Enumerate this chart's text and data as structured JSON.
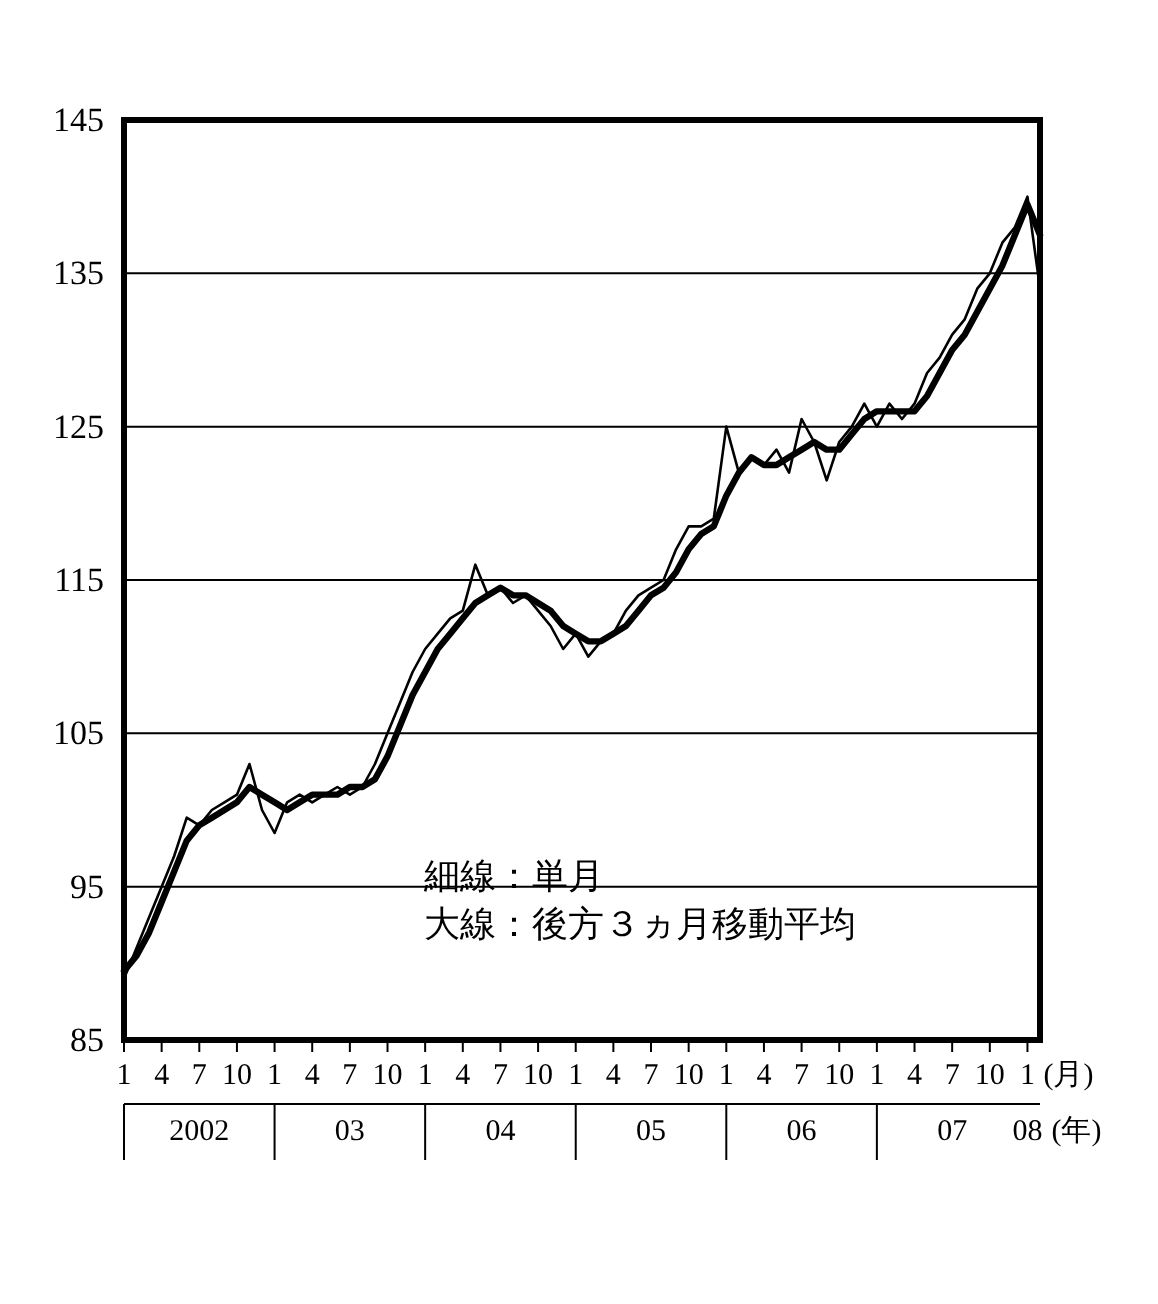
{
  "chart_data": {
    "type": "line",
    "annotations": [
      "細線：単月",
      "大線：後方３ヵ月移動平均"
    ],
    "xlabel": "(月)",
    "x2label": "(年)",
    "x": [
      "2002-01",
      "2002-02",
      "2002-03",
      "2002-04",
      "2002-05",
      "2002-06",
      "2002-07",
      "2002-08",
      "2002-09",
      "2002-10",
      "2002-11",
      "2002-12",
      "2003-01",
      "2003-02",
      "2003-03",
      "2003-04",
      "2003-05",
      "2003-06",
      "2003-07",
      "2003-08",
      "2003-09",
      "2003-10",
      "2003-11",
      "2003-12",
      "2004-01",
      "2004-02",
      "2004-03",
      "2004-04",
      "2004-05",
      "2004-06",
      "2004-07",
      "2004-08",
      "2004-09",
      "2004-10",
      "2004-11",
      "2004-12",
      "2005-01",
      "2005-02",
      "2005-03",
      "2005-04",
      "2005-05",
      "2005-06",
      "2005-07",
      "2005-08",
      "2005-09",
      "2005-10",
      "2005-11",
      "2005-12",
      "2006-01",
      "2006-02",
      "2006-03",
      "2006-04",
      "2006-05",
      "2006-06",
      "2006-07",
      "2006-08",
      "2006-09",
      "2006-10",
      "2006-11",
      "2006-12",
      "2007-01",
      "2007-02",
      "2007-03",
      "2007-04",
      "2007-05",
      "2007-06",
      "2007-07",
      "2007-08",
      "2007-09",
      "2007-10",
      "2007-11",
      "2007-12",
      "2008-01",
      "2008-02"
    ],
    "series": [
      {
        "color": "#000000",
        "values": [
          89,
          91,
          93,
          95,
          97,
          99.5,
          99,
          100,
          100.5,
          101,
          103,
          100,
          98.5,
          100.5,
          101,
          100.5,
          101,
          101.5,
          101,
          101.5,
          103,
          105,
          107,
          109,
          110.5,
          111.5,
          112.5,
          113,
          116,
          114,
          114.5,
          113.5,
          114,
          113,
          112,
          110.5,
          111.5,
          110,
          111,
          111.5,
          113,
          114,
          114.5,
          115,
          117,
          118.5,
          118.5,
          119,
          125,
          122,
          123,
          122.5,
          123.5,
          122,
          125.5,
          124,
          121.5,
          124,
          125,
          126.5,
          125,
          126.5,
          125.5,
          126.5,
          128.5,
          129.5,
          131,
          132,
          134,
          135,
          137,
          138,
          140,
          134
        ]
      },
      {
        "color": "#000000",
        "values": [
          89.5,
          90.5,
          92,
          94,
          96,
          98,
          99,
          99.5,
          100,
          100.5,
          101.5,
          101,
          100.5,
          100,
          100.5,
          101,
          101,
          101,
          101.5,
          101.5,
          102,
          103.5,
          105.5,
          107.5,
          109,
          110.5,
          111.5,
          112.5,
          113.5,
          114,
          114.5,
          114,
          114,
          113.5,
          113,
          112,
          111.5,
          111,
          111,
          111.5,
          112,
          113,
          114,
          114.5,
          115.5,
          117,
          118,
          118.5,
          120.5,
          122,
          123,
          122.5,
          122.5,
          123,
          123.5,
          124,
          123.5,
          123.5,
          124.5,
          125.5,
          126,
          126,
          126,
          126,
          127,
          128.5,
          130,
          131,
          132.5,
          134,
          135.5,
          137.5,
          139.5,
          137.5
        ]
      }
    ],
    "xlim": [
      "2002-01",
      "2008-02"
    ],
    "xticks": [
      {
        "value": "2002-01",
        "label": "1"
      },
      {
        "value": "2002-04",
        "label": "4"
      },
      {
        "value": "2002-07",
        "label": "7"
      },
      {
        "value": "2002-10",
        "label": "10"
      },
      {
        "value": "2003-01",
        "label": "1"
      },
      {
        "value": "2003-04",
        "label": "4"
      },
      {
        "value": "2003-07",
        "label": "7"
      },
      {
        "value": "2003-10",
        "label": "10"
      },
      {
        "value": "2004-01",
        "label": "1"
      },
      {
        "value": "2004-04",
        "label": "4"
      },
      {
        "value": "2004-07",
        "label": "7"
      },
      {
        "value": "2004-10",
        "label": "10"
      },
      {
        "value": "2005-01",
        "label": "1"
      },
      {
        "value": "2005-04",
        "label": "4"
      },
      {
        "value": "2005-07",
        "label": "7"
      },
      {
        "value": "2005-10",
        "label": "10"
      },
      {
        "value": "2006-01",
        "label": "1"
      },
      {
        "value": "2006-04",
        "label": "4"
      },
      {
        "value": "2006-07",
        "label": "7"
      },
      {
        "value": "2006-10",
        "label": "10"
      },
      {
        "value": "2007-01",
        "label": "1"
      },
      {
        "value": "2007-04",
        "label": "4"
      },
      {
        "value": "2007-07",
        "label": "7"
      },
      {
        "value": "2007-10",
        "label": "10"
      },
      {
        "value": "2008-01",
        "label": "1"
      }
    ],
    "x2lim": [
      "2002-01",
      "2008-02"
    ],
    "x2ticks": [
      {
        "value": "2002-07",
        "label": "2002"
      },
      {
        "value": "2003-07",
        "label": "03"
      },
      {
        "value": "2004-07",
        "label": "04"
      },
      {
        "value": "2005-07",
        "label": "05"
      },
      {
        "value": "2006-07",
        "label": "06"
      },
      {
        "value": "2007-07",
        "label": "07"
      },
      {
        "value": "2008-01",
        "label": "08"
      }
    ],
    "ylim": [
      85,
      145
    ],
    "yticks": [
      85,
      95,
      105,
      115,
      125,
      135,
      145
    ],
    "grid": "y",
    "line_style": "solid"
  }
}
